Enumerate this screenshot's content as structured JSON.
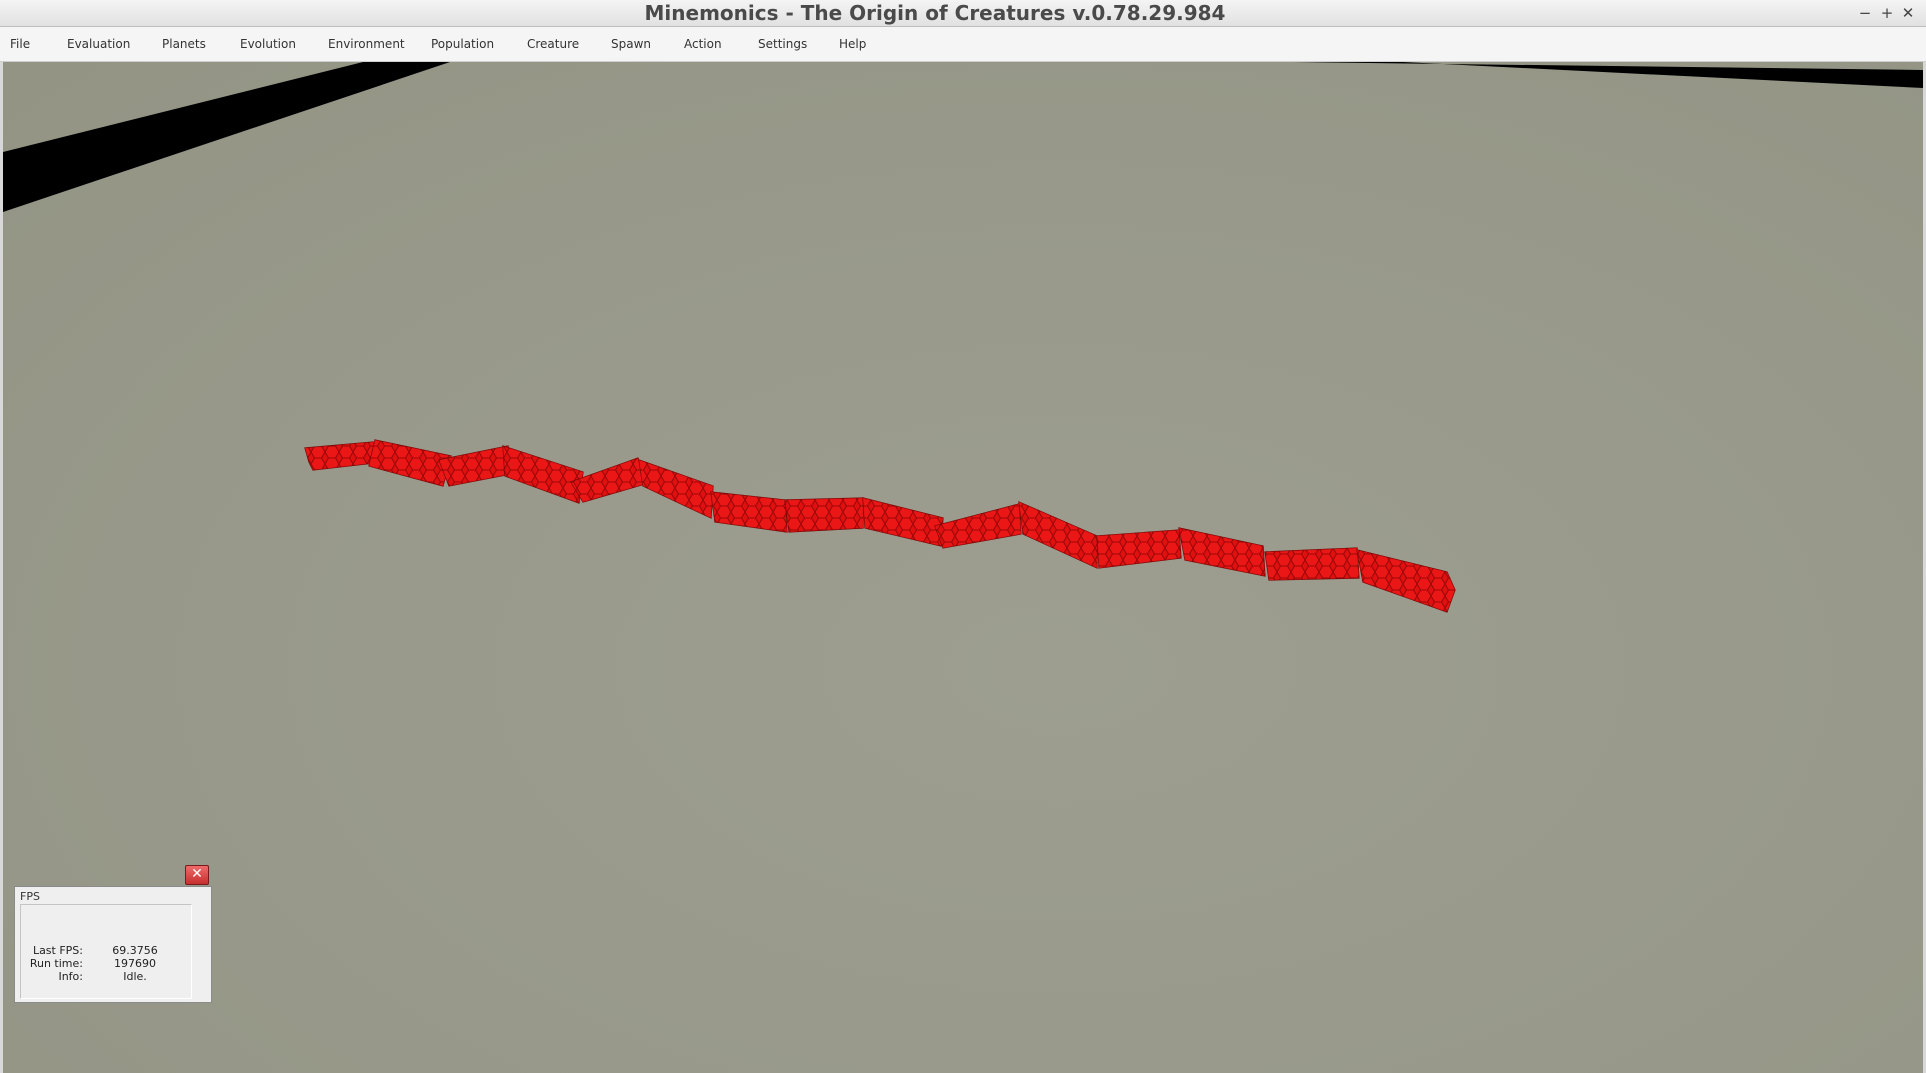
{
  "window": {
    "title": "Minemonics - The Origin of Creatures v.0.78.29.984",
    "controls": [
      {
        "name": "minimize",
        "glyph": "−"
      },
      {
        "name": "maximize",
        "glyph": "+"
      },
      {
        "name": "close",
        "glyph": "✕"
      }
    ]
  },
  "menu": {
    "items": [
      {
        "label": "File"
      },
      {
        "label": "Evaluation"
      },
      {
        "label": "Planets"
      },
      {
        "label": "Evolution"
      },
      {
        "label": "Environment"
      },
      {
        "label": "Population"
      },
      {
        "label": "Creature"
      },
      {
        "label": "Spawn"
      },
      {
        "label": "Action"
      },
      {
        "label": "Settings"
      },
      {
        "label": "Help"
      }
    ]
  },
  "scene": {
    "ground_color": "#9a9b8c",
    "edge_color": "#000000",
    "creature_color": "#e41010",
    "creature_segment_count": 15
  },
  "fps_panel": {
    "title": "FPS",
    "close_icon": "close-icon",
    "rows": [
      {
        "key": "Last FPS:",
        "value": "69.3756"
      },
      {
        "key": "Run time:",
        "value": "197690"
      },
      {
        "key": "Info:",
        "value": "Idle."
      }
    ]
  }
}
